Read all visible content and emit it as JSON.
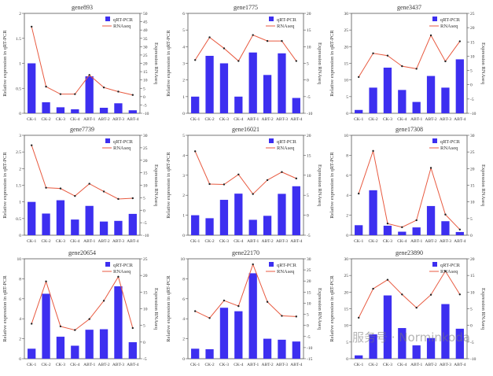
{
  "colors": {
    "bar": "#3d2ff0",
    "line": "#e85a40",
    "marker": "#222222",
    "axis": "#555555"
  },
  "watermark": "服务号 · Norminkoda",
  "chart_data": [
    {
      "type": "bar+line",
      "title": "gene893",
      "categories": [
        "CK-1",
        "CK-2",
        "CK-3",
        "CK-4",
        "ABT-1",
        "ABT-2",
        "ABT-3",
        "ABT-4"
      ],
      "ylabel": "Relative expression in qRT-PCR",
      "y2label": "Expression RNAseq",
      "ylim": [
        0,
        2.0
      ],
      "yticks": [
        0.0,
        0.5,
        1.0,
        1.5,
        2.0
      ],
      "y2lim": [
        -10,
        50
      ],
      "y2ticks": [
        -10,
        -5,
        0,
        5,
        10,
        15,
        20,
        25,
        30,
        35,
        40,
        45,
        50
      ],
      "series": [
        {
          "name": "qRT-PCR",
          "type": "bar",
          "values": [
            1.0,
            0.22,
            0.12,
            0.08,
            0.74,
            0.11,
            0.2,
            0.06
          ]
        },
        {
          "name": "RNAseq",
          "type": "line",
          "axis": "right",
          "values": [
            42,
            6,
            1.5,
            1.5,
            13,
            5.5,
            3,
            1
          ]
        }
      ],
      "legend": "top-right"
    },
    {
      "type": "bar+line",
      "title": "gene1775",
      "categories": [
        "CK-1",
        "CK-2",
        "CK-3",
        "CK-4",
        "ABT-1",
        "ABT-2",
        "ABT-3",
        "ABT-4"
      ],
      "ylabel": "Relative expression in qRT-PCR",
      "y2label": "Expression RNAseq",
      "ylim": [
        0,
        6
      ],
      "yticks": [
        0,
        1,
        2,
        3,
        4,
        5,
        6
      ],
      "y2lim": [
        -10,
        20
      ],
      "y2ticks": [
        -10,
        -5,
        0,
        5,
        10,
        15,
        20
      ],
      "series": [
        {
          "name": "qRT-PCR",
          "type": "bar",
          "values": [
            1.0,
            3.45,
            3.0,
            1.0,
            3.65,
            2.3,
            3.6,
            0.92
          ]
        },
        {
          "name": "RNAseq",
          "type": "line",
          "axis": "right",
          "values": [
            6,
            12.8,
            9.5,
            5.7,
            13.5,
            11.7,
            11.7,
            5.7
          ]
        }
      ],
      "legend": "top-right"
    },
    {
      "type": "bar+line",
      "title": "gene3437",
      "categories": [
        "CK-1",
        "CK-2",
        "CK-3",
        "CK-4",
        "ABT-1",
        "ABT-2",
        "ABT-3",
        "ABT-4"
      ],
      "ylabel": "Relative expression in qRT-PCR",
      "y2label": "Expression RNAseq",
      "ylim": [
        0,
        30
      ],
      "yticks": [
        0,
        5,
        10,
        15,
        20,
        25,
        30
      ],
      "y2lim": [
        -10,
        25
      ],
      "y2ticks": [
        -10,
        -5,
        0,
        5,
        10,
        15,
        20,
        25
      ],
      "series": [
        {
          "name": "qRT-PCR",
          "type": "bar",
          "values": [
            1.0,
            7.7,
            13.7,
            7.0,
            3.4,
            11.2,
            7.7,
            16.2
          ]
        },
        {
          "name": "RNAseq",
          "type": "line",
          "axis": "right",
          "values": [
            2.7,
            11,
            10.2,
            6.5,
            5.6,
            17.3,
            8.2,
            15.2
          ]
        }
      ],
      "legend": "top-right"
    },
    {
      "type": "bar+line",
      "title": "gene7739",
      "categories": [
        "CK-1",
        "CK-2",
        "CK-3",
        "CK-4",
        "ABT-1",
        "ABT-2",
        "ABT-3",
        "ABT-4"
      ],
      "ylabel": "Relative expression in qRT-PCR",
      "y2label": "Expression RNAseq",
      "ylim": [
        0,
        3.0
      ],
      "yticks": [
        0.0,
        0.5,
        1.0,
        1.5,
        2.0,
        2.5,
        3.0
      ],
      "y2lim": [
        -10,
        30
      ],
      "y2ticks": [
        -10,
        -5,
        0,
        5,
        10,
        15,
        20,
        25,
        30
      ],
      "series": [
        {
          "name": "qRT-PCR",
          "type": "bar",
          "values": [
            1.0,
            0.65,
            1.05,
            0.47,
            0.88,
            0.41,
            0.43,
            0.64
          ]
        },
        {
          "name": "RNAseq",
          "type": "line",
          "axis": "right",
          "values": [
            26,
            9,
            8.7,
            5.7,
            10.6,
            7.5,
            4.5,
            4.8
          ]
        }
      ],
      "legend": "top-right"
    },
    {
      "type": "bar+line",
      "title": "gene16021",
      "categories": [
        "CK-1",
        "CK-2",
        "CK-3",
        "CK-4",
        "ABT-1",
        "ABT-2",
        "ABT-3",
        "ABT-4"
      ],
      "ylabel": "Relative expression in qRT-PCR",
      "y2label": "Expression RNAseq",
      "ylim": [
        0,
        5
      ],
      "yticks": [
        0,
        1,
        2,
        3,
        4,
        5
      ],
      "y2lim": [
        -5,
        20
      ],
      "y2ticks": [
        -5,
        0,
        5,
        10,
        15,
        20
      ],
      "series": [
        {
          "name": "qRT-PCR",
          "type": "bar",
          "values": [
            1.0,
            0.85,
            1.77,
            2.08,
            0.77,
            0.97,
            2.07,
            2.45
          ]
        },
        {
          "name": "RNAseq",
          "type": "line",
          "axis": "right",
          "values": [
            16,
            7.8,
            7.7,
            10.2,
            5.3,
            8.8,
            10.8,
            9.2
          ]
        }
      ],
      "legend": "top-right"
    },
    {
      "type": "bar+line",
      "title": "gene17308",
      "categories": [
        "CK-1",
        "CK-2",
        "CK-3",
        "CK-4",
        "ABT-1",
        "ABT-2",
        "ABT-3",
        "ABT-4"
      ],
      "ylabel": "Relative expression in qRT-PCR",
      "y2label": "Expression RNAseq",
      "ylim": [
        0,
        10
      ],
      "yticks": [
        0,
        2,
        4,
        6,
        8,
        10
      ],
      "y2lim": [
        0,
        30
      ],
      "y2ticks": [
        0,
        5,
        10,
        15,
        20,
        25,
        30
      ],
      "series": [
        {
          "name": "qRT-PCR",
          "type": "bar",
          "values": [
            1.0,
            4.5,
            0.95,
            0.35,
            0.78,
            2.92,
            1.4,
            0.32
          ]
        },
        {
          "name": "RNAseq",
          "type": "line",
          "axis": "right",
          "values": [
            12.5,
            25.3,
            3.5,
            2.4,
            4.5,
            20.2,
            6.2,
            1.7
          ]
        }
      ],
      "legend": "top-right"
    },
    {
      "type": "bar+line",
      "title": "gene20654",
      "categories": [
        "CK-1",
        "CK-2",
        "CK-3",
        "CK-4",
        "ABT-1",
        "ABT-2",
        "ABT-3",
        "ABT-4"
      ],
      "ylabel": "Relative expression in qRT-PCR",
      "y2label": "Expression RNAseq",
      "ylim": [
        0,
        10
      ],
      "yticks": [
        0,
        2,
        4,
        6,
        8,
        10
      ],
      "y2lim": [
        -5,
        25
      ],
      "y2ticks": [
        -5,
        0,
        5,
        10,
        15,
        20,
        25
      ],
      "series": [
        {
          "name": "qRT-PCR",
          "type": "bar",
          "values": [
            1.0,
            6.5,
            2.2,
            1.3,
            2.9,
            2.95,
            7.25,
            1.65
          ]
        },
        {
          "name": "RNAseq",
          "type": "line",
          "axis": "right",
          "values": [
            5.5,
            18.2,
            4.7,
            3.6,
            6.9,
            12.4,
            19.6,
            4.2
          ]
        }
      ],
      "legend": "top-right"
    },
    {
      "type": "bar+line",
      "title": "gene22170",
      "categories": [
        "CK-1",
        "CK-2",
        "CK-3",
        "CK-4",
        "ABT-1",
        "ABT-2",
        "ABT-3",
        "ABT-4"
      ],
      "ylabel": "Relative expression in qRT-PCR",
      "y2label": "Expression RNAseq",
      "ylim": [
        0,
        10
      ],
      "yticks": [
        0,
        2,
        4,
        6,
        8,
        10
      ],
      "y2lim": [
        -15,
        30
      ],
      "y2ticks": [
        -15,
        -10,
        -5,
        0,
        5,
        10,
        15,
        20,
        25,
        30
      ],
      "series": [
        {
          "name": "qRT-PCR",
          "type": "bar",
          "values": [
            1.0,
            0.95,
            5.1,
            4.75,
            8.55,
            2.0,
            1.9,
            1.72
          ]
        },
        {
          "name": "RNAseq",
          "type": "line",
          "axis": "right",
          "values": [
            6.4,
            3.3,
            11.2,
            8.7,
            27.5,
            10.6,
            4.3,
            4.0
          ]
        }
      ],
      "legend": "top-right"
    },
    {
      "type": "bar+line",
      "title": "gene23890",
      "categories": [
        "CK-1",
        "CK-2",
        "CK-3",
        "CK-4",
        "ABT-1",
        "ABT-2",
        "ABT-3",
        "ABT-4"
      ],
      "ylabel": "Relative expression in qRT-PCR",
      "y2label": "Expression RNAseq",
      "ylim": [
        0,
        30
      ],
      "yticks": [
        0,
        5,
        10,
        15,
        20,
        25,
        30
      ],
      "y2lim": [
        -10,
        20
      ],
      "y2ticks": [
        -10,
        -5,
        0,
        5,
        10,
        15,
        20
      ],
      "series": [
        {
          "name": "qRT-PCR",
          "type": "bar",
          "values": [
            1.0,
            7.3,
            19.0,
            9.2,
            4.0,
            6.2,
            16.4,
            9.0
          ]
        },
        {
          "name": "RNAseq",
          "type": "line",
          "axis": "right",
          "values": [
            2.3,
            11,
            13.7,
            9.3,
            5.3,
            9.2,
            16.3,
            9.3
          ]
        }
      ],
      "legend": "top-right"
    }
  ]
}
